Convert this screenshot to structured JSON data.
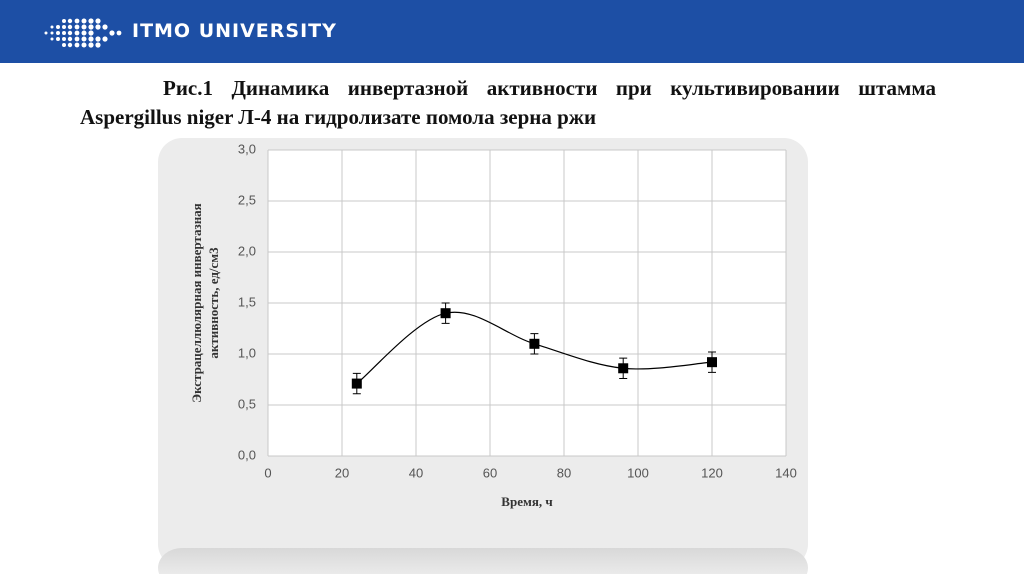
{
  "header": {
    "brand": "ITMO UNIVERSITY"
  },
  "chart_data": {
    "type": "line",
    "title": "Рис.1 Динамика инвертазной активности при культивировании штамма Aspergillus niger Л-4 на гидролизате помола зерна ржи",
    "x_label": "Время, ч",
    "y_label": [
      "Экстрацеллюлярная инвертазная",
      "активность, ед/см3"
    ],
    "x": [
      24,
      48,
      72,
      96,
      120
    ],
    "series": [
      {
        "color": "#000000",
        "values": [
          0.71,
          1.4,
          1.1,
          0.86,
          0.92
        ],
        "errors": [
          0.1,
          0.1,
          0.1,
          0.1,
          0.1
        ]
      }
    ],
    "xlim": [
      0,
      140
    ],
    "xticks": [
      0,
      20,
      40,
      60,
      80,
      100,
      120,
      140
    ],
    "ylim": [
      0,
      3
    ],
    "yticks": [
      {
        "value": 0,
        "label": "0,0"
      },
      {
        "value": 0.5,
        "label": "0,5"
      },
      {
        "value": 1,
        "label": "1,0"
      },
      {
        "value": 1.5,
        "label": "1,5"
      },
      {
        "value": 2,
        "label": "2,0"
      },
      {
        "value": 2.5,
        "label": "2,5"
      },
      {
        "value": 3,
        "label": "3,0"
      }
    ],
    "grid": true,
    "smooth": true
  }
}
